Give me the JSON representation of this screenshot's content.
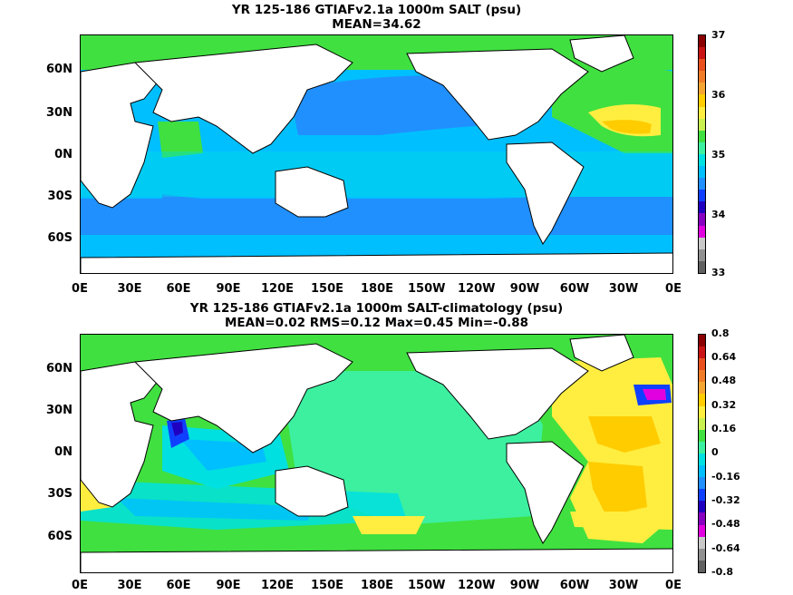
{
  "panels": [
    {
      "title_line1": "YR 125-186 GTIAFv2.1a 1000m SALT (psu)",
      "title_line2": "MEAN=34.62",
      "colorbar_labels": [
        "37",
        "36",
        "35",
        "34",
        "33"
      ],
      "colorbar_colors": [
        "#8b0000",
        "#c81414",
        "#e8501e",
        "#f07c28",
        "#f5a531",
        "#ffcc00",
        "#ffee40",
        "#c8f050",
        "#40e040",
        "#3cf0a0",
        "#00e0e0",
        "#00bfff",
        "#2090ff",
        "#1040ff",
        "#2000c0",
        "#8800c0",
        "#e000e0",
        "#c8c8c8",
        "#909090",
        "#606060"
      ]
    },
    {
      "title_line1": "YR 125-186 GTIAFv2.1a 1000m SALT-climatology (psu)",
      "title_line2": "MEAN=0.02   RMS=0.12   Max=0.45   Min=-0.88",
      "colorbar_labels": [
        "0.8",
        "0.64",
        "0.48",
        "0.32",
        "0.16",
        "0",
        "-0.16",
        "-0.32",
        "-0.48",
        "-0.64",
        "-0.8"
      ],
      "colorbar_colors": [
        "#8b0000",
        "#c81414",
        "#e8501e",
        "#f07c28",
        "#f5a531",
        "#ffcc00",
        "#ffee40",
        "#c8f050",
        "#40e040",
        "#3cf0a0",
        "#00e0e0",
        "#00bfff",
        "#2090ff",
        "#1040ff",
        "#2000c0",
        "#8800c0",
        "#e000e0",
        "#c8c8c8",
        "#909090",
        "#606060"
      ]
    }
  ],
  "latitude_labels": [
    "60N",
    "30N",
    "0N",
    "30S",
    "60S"
  ],
  "longitude_labels": [
    "0E",
    "30E",
    "60E",
    "90E",
    "120E",
    "150E",
    "180E",
    "150W",
    "120W",
    "90W",
    "60W",
    "30W",
    "0E"
  ]
}
